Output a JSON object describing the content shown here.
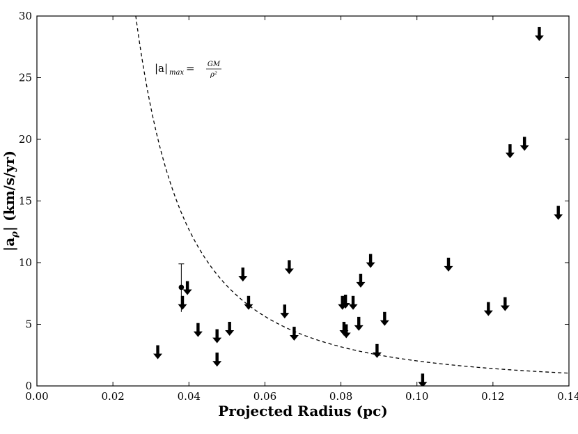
{
  "chart_data": {
    "type": "scatter",
    "xlabel": "Projected Radius (pc)",
    "ylabel": "|aρ| (km/s/yr)",
    "xlim": [
      0.0,
      0.14
    ],
    "ylim": [
      0,
      30
    ],
    "x_ticks": [
      0.0,
      0.02,
      0.04,
      0.06,
      0.08,
      0.1,
      0.12,
      0.14
    ],
    "x_tick_labels": [
      "0.00",
      "0.02",
      "0.04",
      "0.06",
      "0.08",
      "0.10",
      "0.12",
      "0.14"
    ],
    "y_ticks": [
      0,
      5,
      10,
      15,
      20,
      25,
      30
    ],
    "y_tick_labels": [
      "0",
      "5",
      "10",
      "15",
      "20",
      "25",
      "30"
    ],
    "grid": false,
    "curve": {
      "label": "|a|max = GM/ρ²",
      "label_parts": {
        "base": "|a|",
        "sub": "max",
        "eq": " = ",
        "num": "GM",
        "den": "ρ²"
      },
      "k": 0.0203,
      "style": "dashed",
      "x_start": 0.026,
      "x_end": 0.14
    },
    "measurement": {
      "x": 0.038,
      "y": 8.0,
      "err_low": 2.0,
      "err_high": 1.9
    },
    "upper_limits": [
      {
        "x": 0.0318,
        "y": 3.3
      },
      {
        "x": 0.0383,
        "y": 7.3
      },
      {
        "x": 0.0396,
        "y": 8.5
      },
      {
        "x": 0.0424,
        "y": 5.1
      },
      {
        "x": 0.0474,
        "y": 4.6
      },
      {
        "x": 0.0474,
        "y": 2.7
      },
      {
        "x": 0.0507,
        "y": 5.2
      },
      {
        "x": 0.0542,
        "y": 9.6
      },
      {
        "x": 0.0557,
        "y": 7.3
      },
      {
        "x": 0.0652,
        "y": 6.6
      },
      {
        "x": 0.0664,
        "y": 10.2
      },
      {
        "x": 0.0677,
        "y": 4.8
      },
      {
        "x": 0.0804,
        "y": 7.3
      },
      {
        "x": 0.0812,
        "y": 7.4
      },
      {
        "x": 0.0808,
        "y": 5.2
      },
      {
        "x": 0.0814,
        "y": 5.0
      },
      {
        "x": 0.0832,
        "y": 7.3
      },
      {
        "x": 0.0847,
        "y": 5.6
      },
      {
        "x": 0.0852,
        "y": 9.1
      },
      {
        "x": 0.0878,
        "y": 10.7
      },
      {
        "x": 0.0895,
        "y": 3.4
      },
      {
        "x": 0.0915,
        "y": 6.0
      },
      {
        "x": 0.1015,
        "y": 1.0
      },
      {
        "x": 0.1083,
        "y": 10.4
      },
      {
        "x": 0.1188,
        "y": 6.8
      },
      {
        "x": 0.1232,
        "y": 7.2
      },
      {
        "x": 0.1245,
        "y": 19.6
      },
      {
        "x": 0.1283,
        "y": 20.2
      },
      {
        "x": 0.1322,
        "y": 29.1
      },
      {
        "x": 0.1372,
        "y": 14.6
      }
    ]
  }
}
